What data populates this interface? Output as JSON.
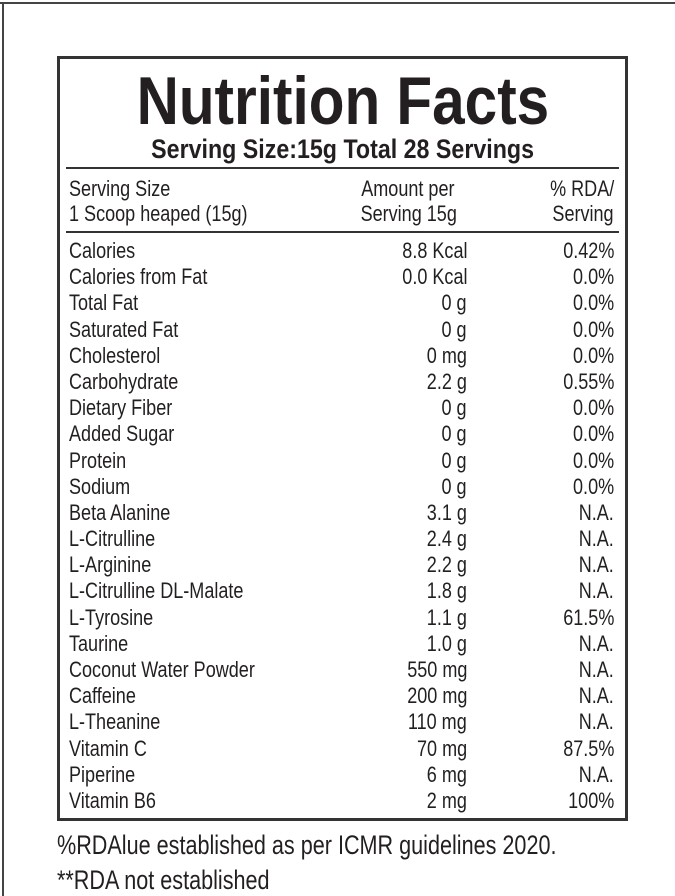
{
  "title": "Nutrition Facts",
  "subtitle": "Serving Size:15g Total 28 Servings",
  "header": {
    "col1": [
      "Serving Size",
      "1 Scoop heaped (15g)"
    ],
    "col2": [
      "Amount per",
      "Serving 15g"
    ],
    "col3": [
      "% RDA/",
      "Serving"
    ]
  },
  "rows": [
    {
      "name": "Calories",
      "amount": "8.8 Kcal",
      "rda": "0.42%"
    },
    {
      "name": "Calories from Fat",
      "amount": "0.0 Kcal",
      "rda": "0.0%"
    },
    {
      "name": "Total Fat",
      "amount": "0 g",
      "rda": "0.0%"
    },
    {
      "name": "Saturated Fat",
      "amount": "0 g",
      "rda": "0.0%"
    },
    {
      "name": "Cholesterol",
      "amount": "0 mg",
      "rda": "0.0%"
    },
    {
      "name": "Carbohydrate",
      "amount": "2.2 g",
      "rda": "0.55%"
    },
    {
      "name": "Dietary Fiber",
      "amount": "0 g",
      "rda": "0.0%"
    },
    {
      "name": "Added Sugar",
      "amount": "0 g",
      "rda": "0.0%"
    },
    {
      "name": "Protein",
      "amount": "0 g",
      "rda": "0.0%"
    },
    {
      "name": "Sodium",
      "amount": "0 g",
      "rda": "0.0%"
    },
    {
      "name": "Beta Alanine",
      "amount": "3.1 g",
      "rda": "N.A."
    },
    {
      "name": "L-Citrulline",
      "amount": "2.4 g",
      "rda": "N.A."
    },
    {
      "name": "L-Arginine",
      "amount": "2.2 g",
      "rda": "N.A."
    },
    {
      "name": "L-Citrulline DL-Malate",
      "amount": "1.8 g",
      "rda": "N.A."
    },
    {
      "name": "L-Tyrosine",
      "amount": "1.1 g",
      "rda": "61.5%"
    },
    {
      "name": "Taurine",
      "amount": "1.0 g",
      "rda": "N.A."
    },
    {
      "name": "Coconut Water Powder",
      "amount": "550 mg",
      "rda": "N.A."
    },
    {
      "name": "Caffeine",
      "amount": "200 mg",
      "rda": "N.A."
    },
    {
      "name": "L-Theanine",
      "amount": "110 mg",
      "rda": "N.A."
    },
    {
      "name": "Vitamin C",
      "amount": "70 mg",
      "rda": "87.5%"
    },
    {
      "name": "Piperine",
      "amount": "6 mg",
      "rda": "N.A."
    },
    {
      "name": "Vitamin B6",
      "amount": "2 mg",
      "rda": "100%"
    }
  ],
  "footnotes": [
    "%RDAlue established as per ICMR guidelines 2020.",
    "**RDA not established"
  ]
}
